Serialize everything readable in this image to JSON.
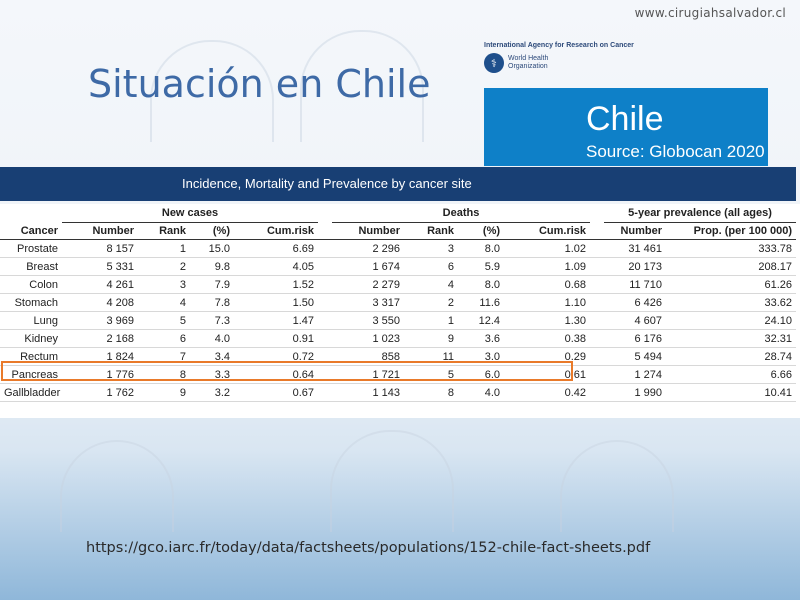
{
  "website": "www.cirugiahsalvador.cl",
  "title": "Situación en Chile",
  "logo": {
    "iarc_name": "International Agency for Research on Cancer",
    "who_name": "World Health\nOrganization"
  },
  "country_box": {
    "country": "Chile",
    "source": "Source: Globocan 2020",
    "color": "#0e80c8"
  },
  "banner": {
    "text": "Incidence, Mortality and Prevalence by cancer site"
  },
  "table": {
    "groups": {
      "new_cases": "New cases",
      "deaths": "Deaths",
      "prevalence": "5-year prevalence (all ages)"
    },
    "columns": {
      "cancer": "Cancer",
      "nc_number": "Number",
      "nc_rank": "Rank",
      "nc_pct": "(%)",
      "nc_cumrisk": "Cum.risk",
      "d_number": "Number",
      "d_rank": "Rank",
      "d_pct": "(%)",
      "d_cumrisk": "Cum.risk",
      "p_number": "Number",
      "p_prop": "Prop. (per 100 000)"
    },
    "rows": [
      [
        "Prostate",
        "8 157",
        "1",
        "15.0",
        "6.69",
        "2 296",
        "3",
        "8.0",
        "1.02",
        "31 461",
        "333.78"
      ],
      [
        "Breast",
        "5 331",
        "2",
        "9.8",
        "4.05",
        "1 674",
        "6",
        "5.9",
        "1.09",
        "20 173",
        "208.17"
      ],
      [
        "Colon",
        "4 261",
        "3",
        "7.9",
        "1.52",
        "2 279",
        "4",
        "8.0",
        "0.68",
        "11 710",
        "61.26"
      ],
      [
        "Stomach",
        "4 208",
        "4",
        "7.8",
        "1.50",
        "3 317",
        "2",
        "11.6",
        "1.10",
        "6 426",
        "33.62"
      ],
      [
        "Lung",
        "3 969",
        "5",
        "7.3",
        "1.47",
        "3 550",
        "1",
        "12.4",
        "1.30",
        "4 607",
        "24.10"
      ],
      [
        "Kidney",
        "2 168",
        "6",
        "4.0",
        "0.91",
        "1 023",
        "9",
        "3.6",
        "0.38",
        "6 176",
        "32.31"
      ],
      [
        "Rectum",
        "1 824",
        "7",
        "3.4",
        "0.72",
        "858",
        "11",
        "3.0",
        "0.29",
        "5 494",
        "28.74"
      ],
      [
        "Pancreas",
        "1 776",
        "8",
        "3.3",
        "0.64",
        "1 721",
        "5",
        "6.0",
        "0.61",
        "1 274",
        "6.66"
      ],
      [
        "Gallbladder",
        "1 762",
        "9",
        "3.2",
        "0.67",
        "1 143",
        "8",
        "4.0",
        "0.42",
        "1 990",
        "10.41"
      ]
    ],
    "highlight_color": "#e97a2a"
  },
  "url": "https://gco.iarc.fr/today/data/factsheets/populations/152-chile-fact-sheets.pdf"
}
